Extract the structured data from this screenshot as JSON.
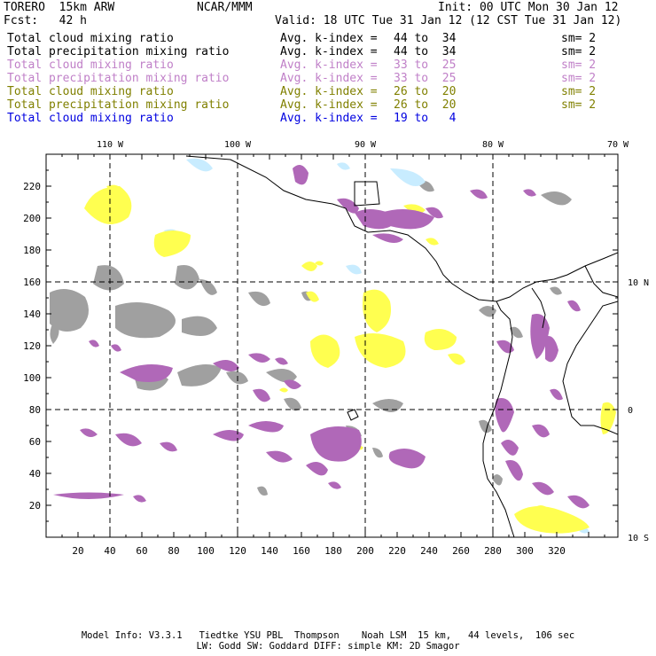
{
  "header": {
    "model": "TORERO  15km ARW",
    "center": "NCAR/MMM",
    "init": "Init: 00 UTC Mon 30 Jan 12",
    "fcst": "Fcst:   42 h",
    "valid": "Valid: 18 UTC Tue 31 Jan 12 (12 CST Tue 31 Jan 12)"
  },
  "legend": [
    {
      "name": "Total cloud mixing ratio",
      "avg": "Avg. k-index = ",
      "k": "44 to  34",
      "sm": "sm= 2",
      "color": "#000000"
    },
    {
      "name": "Total precipitation mixing ratio",
      "avg": "Avg. k-index = ",
      "k": "44 to  34",
      "sm": "sm= 2",
      "color": "#000000"
    },
    {
      "name": "Total cloud mixing ratio",
      "avg": "Avg. k-index = ",
      "k": "33 to  25",
      "sm": "sm= 2",
      "color": "#c080c8"
    },
    {
      "name": "Total precipitation mixing ratio",
      "avg": "Avg. k-index = ",
      "k": "33 to  25",
      "sm": "sm= 2",
      "color": "#c080c8"
    },
    {
      "name": "Total cloud mixing ratio",
      "avg": "Avg. k-index = ",
      "k": "26 to  20",
      "sm": "sm= 2",
      "color": "#808000"
    },
    {
      "name": "Total precipitation mixing ratio",
      "avg": "Avg. k-index = ",
      "k": "26 to  20",
      "sm": "sm= 2",
      "color": "#808000"
    },
    {
      "name": "Total cloud mixing ratio",
      "avg": "Avg. k-index = ",
      "k": "19 to   4",
      "sm": "",
      "color": "#0000e0"
    }
  ],
  "map": {
    "lon_labels": [
      "110 W",
      "100 W",
      "90 W",
      "80 W",
      "70 W"
    ],
    "lat_labels": [
      "10 N",
      "0",
      "10 S"
    ],
    "x_ticks": [
      "20",
      "40",
      "60",
      "80",
      "100",
      "120",
      "140",
      "160",
      "180",
      "200",
      "220",
      "240",
      "260",
      "280",
      "300",
      "320"
    ],
    "y_ticks": [
      "20",
      "40",
      "60",
      "80",
      "100",
      "120",
      "140",
      "160",
      "180",
      "200",
      "220"
    ],
    "colors": {
      "gray": "#a0a0a0",
      "purple": "#b068b8",
      "yellow": "#ffff50",
      "lightblue": "#c8ecff"
    }
  },
  "footer": {
    "line1": "Model Info: V3.3.1   Tiedtke YSU PBL  Thompson    Noah LSM  15 km,   44 levels,  106 sec",
    "line2": "LW: Godd SW: Goddard DIFF: simple KM: 2D Smagor"
  }
}
